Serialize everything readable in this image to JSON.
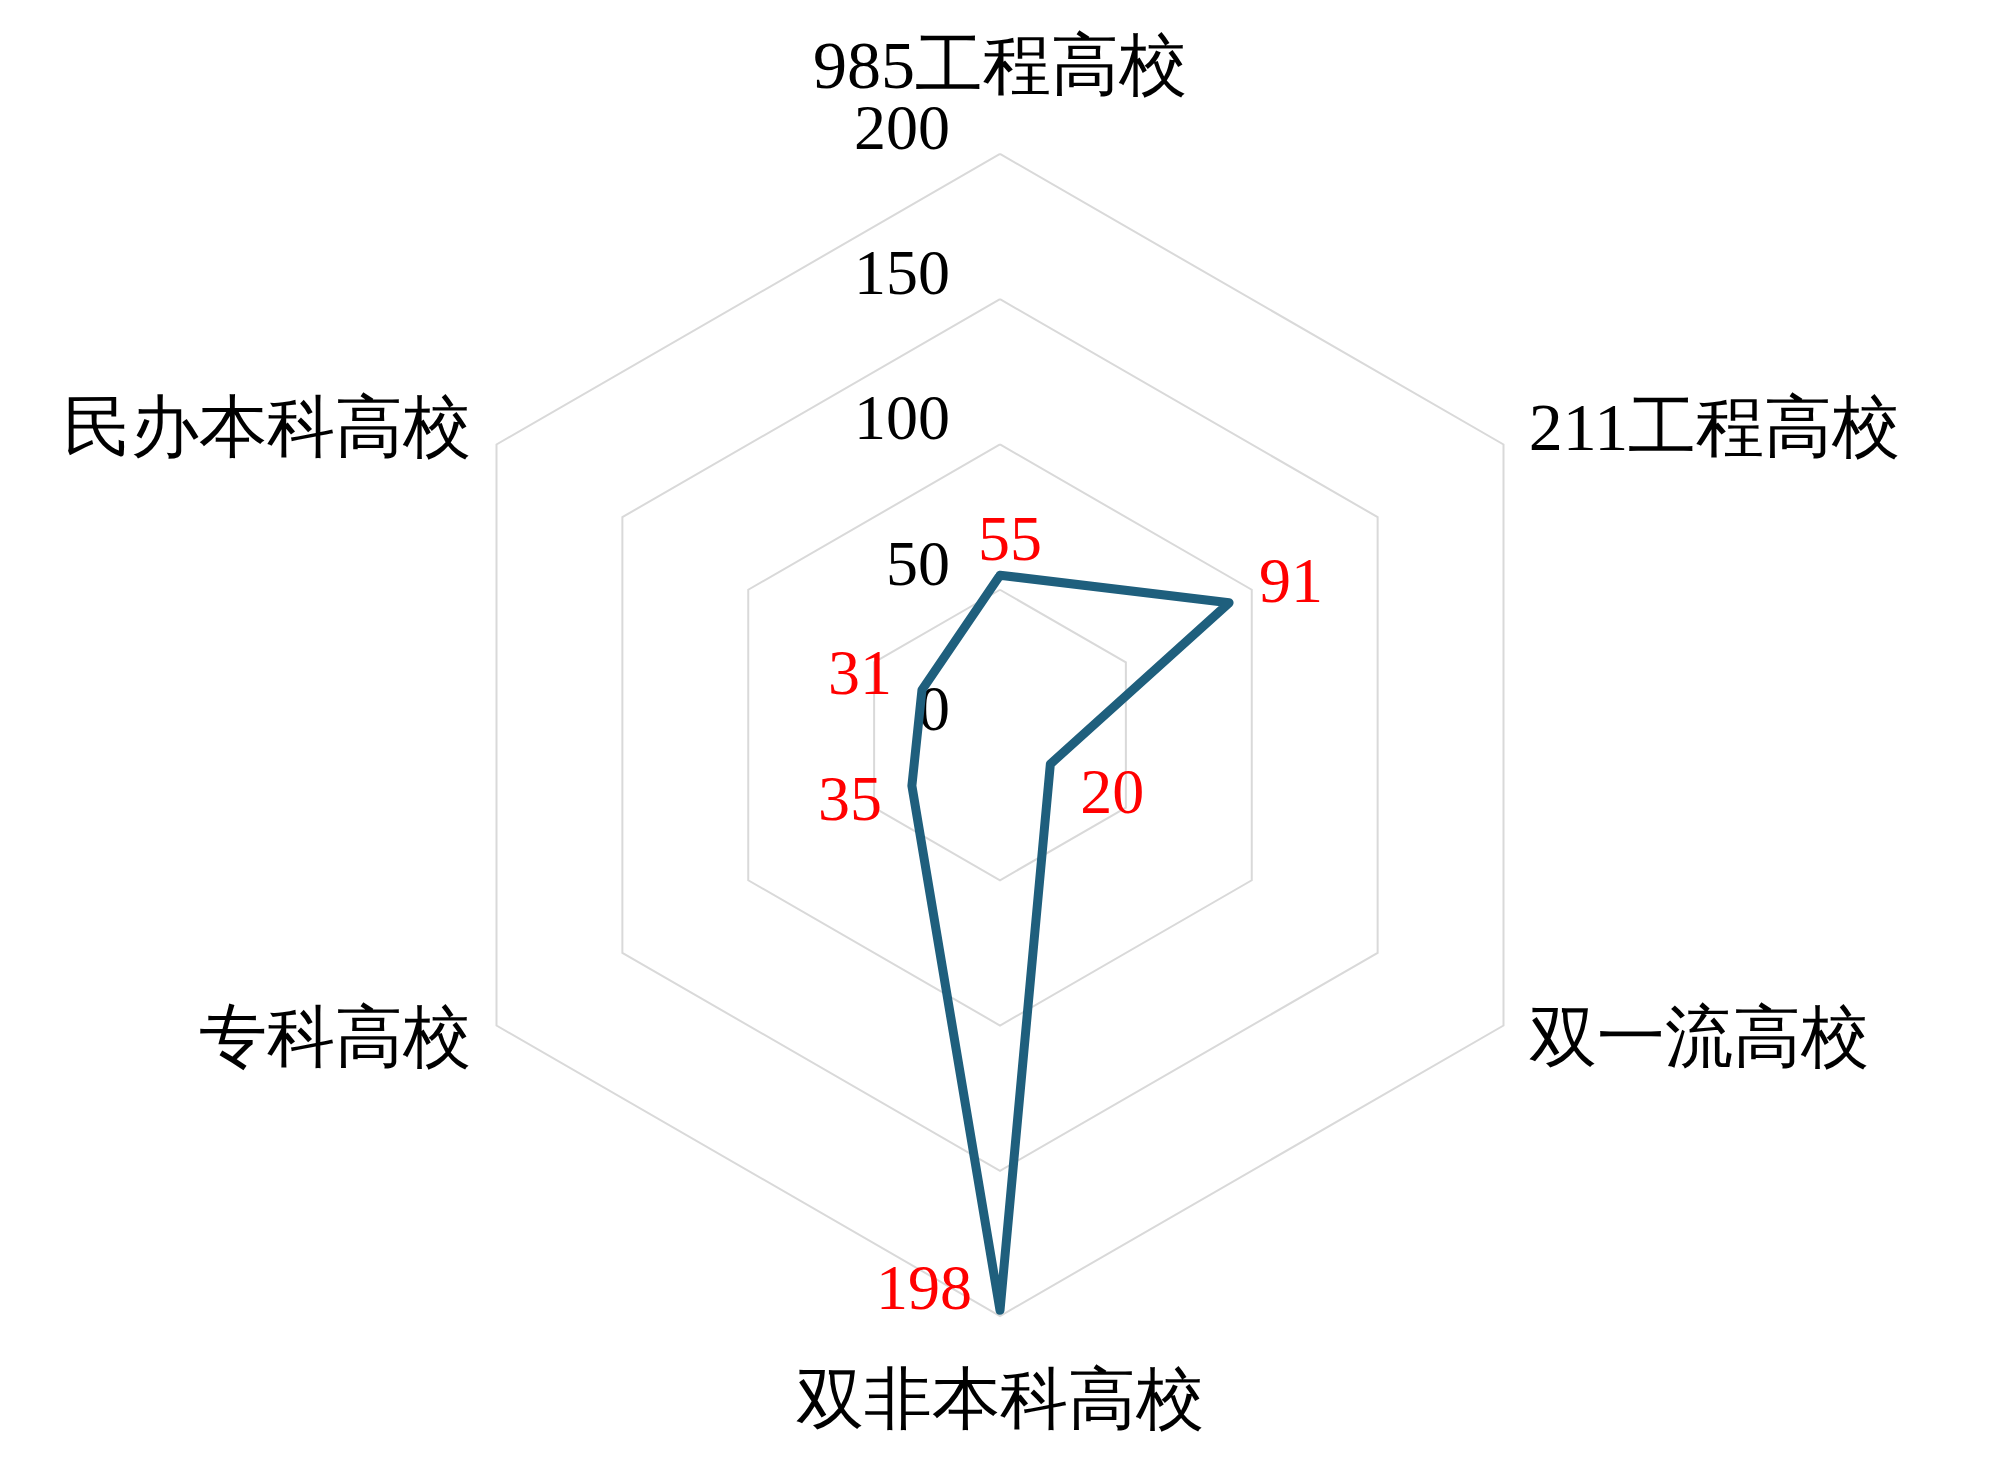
{
  "chart_data": {
    "type": "radar",
    "categories": [
      "985工程高校",
      "211工程高校",
      "双一流高校",
      "双非本科高校",
      "专科高校",
      "民办本科高校"
    ],
    "series": [
      {
        "color": "#1f5f7d",
        "values": [
          55,
          91,
          20,
          198,
          35,
          31
        ]
      }
    ],
    "ylim": [
      0,
      200
    ],
    "yticks": [
      0,
      50,
      100,
      150,
      200
    ],
    "grid": true,
    "data_labels": true
  }
}
